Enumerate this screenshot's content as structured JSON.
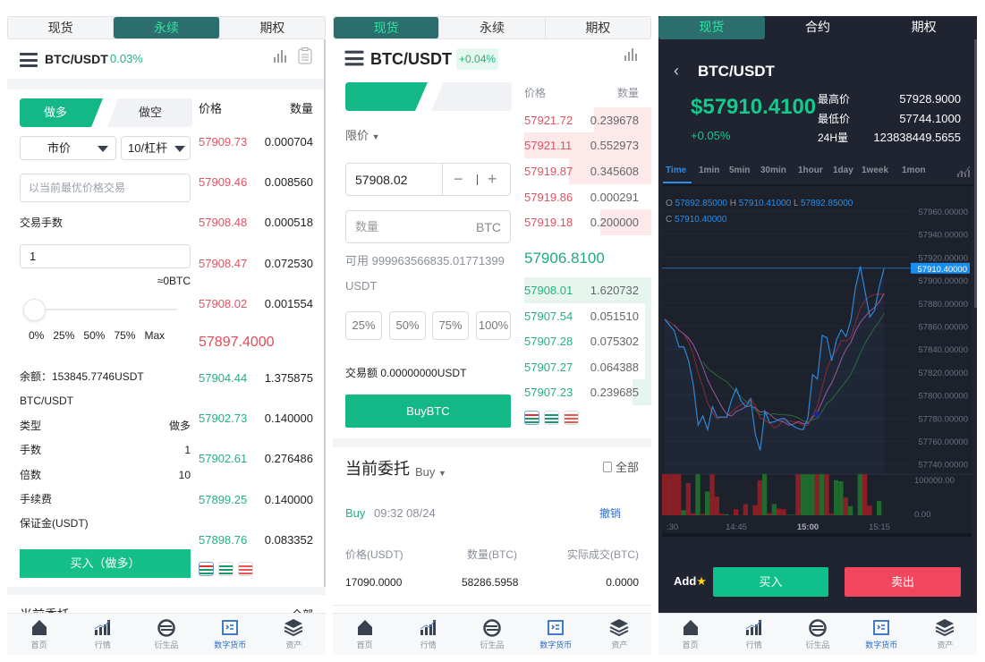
{
  "nav": [
    "首页",
    "行情",
    "衍生品",
    "数字货币",
    "资产"
  ],
  "colors": {
    "green": "#14b886",
    "red": "#de5462",
    "teal_tab": "#2c6e6e",
    "dark_bg": "#1f2430",
    "active_nav": "#2e6bc4"
  },
  "p1": {
    "tabs": [
      "现货",
      "永续",
      "期权"
    ],
    "pair": "BTC/USDT",
    "change": "0.03%",
    "long_tab": "做多",
    "short_tab": "做空",
    "book_price_header": "价格",
    "book_qty_header": "数量",
    "order_type": "市价",
    "leverage": "10/杠杆",
    "price_placeholder": "以当前最优价格交易",
    "lots_label": "交易手数",
    "lots_value": "1",
    "approx": "≈0BTC",
    "slider_value": 0,
    "pcts": [
      "0%",
      "25%",
      "50%",
      "75%",
      "Max"
    ],
    "balance": "余额：153845.7746USDT",
    "summary_pair": "BTC/USDT",
    "rows": [
      {
        "label": "类型",
        "value": "做多"
      },
      {
        "label": "手数",
        "value": "1"
      },
      {
        "label": "倍数",
        "value": "10"
      },
      {
        "label": "手续费",
        "value": ""
      },
      {
        "label": "保证金(USDT)",
        "value": ""
      }
    ],
    "submit": "买入（做多）",
    "asks": [
      [
        "57909.73",
        "0.000704"
      ],
      [
        "57909.46",
        "0.008560"
      ],
      [
        "57908.48",
        "0.000518"
      ],
      [
        "57908.47",
        "0.072530"
      ],
      [
        "57908.02",
        "0.001554"
      ]
    ],
    "mid": "57897.4000",
    "bids": [
      [
        "57904.44",
        "1.375875"
      ],
      [
        "57902.73",
        "0.140000"
      ],
      [
        "57902.61",
        "0.276486"
      ],
      [
        "57899.25",
        "0.140000"
      ],
      [
        "57898.76",
        "0.083352"
      ]
    ],
    "orders_title": "当前委托",
    "all": "全部"
  },
  "p2": {
    "tabs": [
      "现货",
      "永续",
      "期权"
    ],
    "pair": "BTC/USDT",
    "change": "+0.04%",
    "book_price_header": "价格",
    "book_qty_header": "数量",
    "order_type": "限价",
    "price_value": "57908.02",
    "qty_placeholder": "数量",
    "qty_unit": "BTC",
    "available": "可用 999963566835.01771399",
    "available_unit": "USDT",
    "pcts": [
      "25%",
      "50%",
      "75%",
      "100%"
    ],
    "amount": "交易额 0.00000000USDT",
    "submit": "BuyBTC",
    "asks": [
      [
        "57921.72",
        "0.239678",
        0.45
      ],
      [
        "57921.11",
        "0.552973",
        1.0
      ],
      [
        "57919.87",
        "0.345608",
        0.65
      ],
      [
        "57919.86",
        "0.000291",
        0
      ],
      [
        "57919.18",
        "0.200000",
        0.4
      ]
    ],
    "mid": "57906.8100",
    "bids": [
      [
        "57908.01",
        "1.620732",
        1.0
      ],
      [
        "57907.54",
        "0.051510",
        0.05
      ],
      [
        "57907.28",
        "0.075302",
        0.05
      ],
      [
        "57907.27",
        "0.064388",
        0.05
      ],
      [
        "57907.23",
        "0.239685",
        0.15
      ]
    ],
    "orders_title": "当前委托",
    "orders_filter": "Buy",
    "all": "全部",
    "order": {
      "side": "Buy",
      "time": "09:32 08/24",
      "cancel": "撤销"
    },
    "order_headers": [
      "价格(USDT)",
      "数量(BTC)",
      "实际成交(BTC)"
    ],
    "order_values": [
      "17090.0000",
      "58286.5958",
      "0.0000"
    ]
  },
  "p3": {
    "tabs": [
      "现货",
      "合约",
      "期权"
    ],
    "pair": "BTC/USDT",
    "price": "$57910.4100",
    "change": "+0.05%",
    "stats": [
      {
        "label": "最高价",
        "value": "57928.9000"
      },
      {
        "label": "最低价",
        "value": "57744.1000"
      },
      {
        "label": "24H量",
        "value": "123838449.5655"
      }
    ],
    "timeframes": [
      "Time",
      "1min",
      "5min",
      "30min",
      "1hour",
      "1day",
      "1week",
      "1mon"
    ],
    "active_timeframe": "Time",
    "ohlc": {
      "o_label": "O",
      "o": "57892.85000",
      "h_label": "H",
      "h": "57910.41000",
      "l_label": "L",
      "l": "57892.85000",
      "c_label": "C",
      "c": "57910.40000"
    },
    "add_fav": "Add",
    "buy": "买入",
    "sell": "卖出",
    "chart_data": {
      "type": "line",
      "y_ticks": [
        "57960.00000",
        "57940.00000",
        "57920.00000",
        "57900.00000",
        "57880.00000",
        "57860.00000",
        "57840.00000",
        "57820.00000",
        "57800.00000",
        "57780.00000",
        "57760.00000",
        "57740.00000"
      ],
      "ylim": [
        57740,
        57960
      ],
      "last_price_label": "57910.40000",
      "last_price": 57910.4,
      "x_ticks": [
        ":30",
        "14:45",
        "15:00",
        "15:15"
      ],
      "x_start": "14:30",
      "prices": [
        57866,
        57861,
        57856,
        57842,
        57842,
        57830,
        57809,
        57774,
        57782,
        57770,
        57790,
        57781,
        57781,
        57781,
        57796,
        57806,
        57795,
        57790,
        57797,
        57766,
        57752,
        57786,
        57776,
        57777,
        57779,
        57780,
        57776,
        57773,
        57771,
        57770,
        57780,
        57818,
        57814,
        57852,
        57850,
        57830,
        57848,
        57857,
        57851,
        57865,
        57894,
        57912,
        57890,
        57868,
        57874,
        57895,
        57910.4
      ],
      "volume_ticks": [
        "100000.00",
        "0.00"
      ],
      "volumes": [
        121000,
        121000,
        121000,
        121000,
        15000,
        95000,
        6000,
        121000,
        4000,
        70000,
        121000,
        55000,
        5000,
        3000,
        500,
        18000,
        500,
        33000,
        500,
        30000,
        103000,
        121000,
        6000,
        33000,
        20000,
        18000,
        1500,
        1500,
        121000,
        121000,
        121000,
        121000,
        121000,
        121000,
        121000,
        5000,
        103000,
        100000,
        52000,
        27000,
        500,
        121000,
        121000,
        28000,
        500,
        42000
      ],
      "volume_up": [
        0,
        0,
        0,
        0,
        1,
        0,
        0,
        1,
        0,
        1,
        0,
        0,
        0,
        1,
        0,
        0,
        0,
        0,
        0,
        0,
        0,
        1,
        0,
        1,
        0,
        0,
        1,
        1,
        0,
        1,
        1,
        1,
        0,
        1,
        0,
        0,
        1,
        1,
        0,
        1,
        1,
        1,
        0,
        0,
        1,
        1
      ]
    }
  }
}
